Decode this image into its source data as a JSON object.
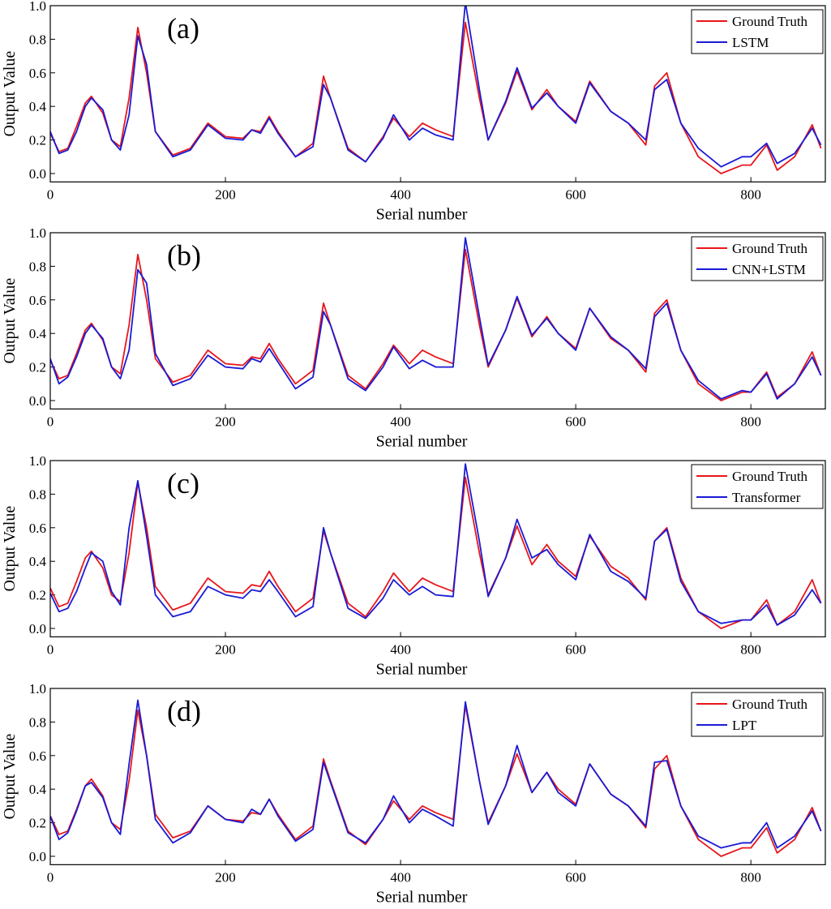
{
  "chart_data": [
    {
      "type": "line",
      "annotation": "(a)",
      "xlabel": "Serial number",
      "ylabel": "Output Value",
      "legend": "upper right",
      "xlim": [
        0,
        885
      ],
      "ylim": [
        -0.05,
        1.0
      ],
      "xticks": [
        0,
        200,
        400,
        600,
        800
      ],
      "yticks": [
        {
          "value": 0,
          "label": "0.0"
        },
        0.2,
        0.4,
        0.6,
        0.8,
        {
          "value": 1,
          "label": "1.0"
        }
      ],
      "x": [
        0,
        10,
        20,
        30,
        40,
        47,
        60,
        70,
        80,
        90,
        100,
        110,
        120,
        140,
        160,
        180,
        200,
        220,
        230,
        240,
        250,
        260,
        280,
        300,
        312,
        320,
        340,
        360,
        380,
        392,
        410,
        425,
        440,
        460,
        474,
        490,
        500,
        520,
        533,
        550,
        567,
        580,
        600,
        616,
        640,
        660,
        680,
        690,
        704,
        720,
        740,
        766,
        790,
        800,
        818,
        830,
        850,
        870,
        880
      ],
      "series": [
        {
          "name": "Ground Truth",
          "color": "#e8161b",
          "values": [
            0.24,
            0.13,
            0.15,
            0.28,
            0.42,
            0.46,
            0.36,
            0.2,
            0.16,
            0.45,
            0.87,
            0.6,
            0.25,
            0.11,
            0.15,
            0.3,
            0.22,
            0.21,
            0.26,
            0.25,
            0.34,
            0.25,
            0.1,
            0.18,
            0.58,
            0.45,
            0.15,
            0.07,
            0.22,
            0.33,
            0.22,
            0.3,
            0.26,
            0.22,
            0.9,
            0.45,
            0.2,
            0.42,
            0.61,
            0.38,
            0.5,
            0.4,
            0.31,
            0.55,
            0.37,
            0.3,
            0.17,
            0.52,
            0.6,
            0.3,
            0.1,
            0.0,
            0.05,
            0.05,
            0.17,
            0.02,
            0.1,
            0.29,
            0.15
          ]
        },
        {
          "name": "LSTM",
          "color": "#1a1ad6",
          "values": [
            0.25,
            0.12,
            0.14,
            0.25,
            0.4,
            0.45,
            0.38,
            0.2,
            0.14,
            0.35,
            0.82,
            0.65,
            0.25,
            0.1,
            0.14,
            0.29,
            0.21,
            0.2,
            0.26,
            0.24,
            0.33,
            0.24,
            0.1,
            0.16,
            0.53,
            0.45,
            0.14,
            0.07,
            0.21,
            0.35,
            0.2,
            0.27,
            0.23,
            0.2,
            1.02,
            0.5,
            0.2,
            0.43,
            0.63,
            0.39,
            0.48,
            0.4,
            0.3,
            0.54,
            0.37,
            0.3,
            0.2,
            0.5,
            0.56,
            0.3,
            0.15,
            0.04,
            0.1,
            0.1,
            0.18,
            0.06,
            0.12,
            0.27,
            0.17
          ]
        }
      ]
    },
    {
      "type": "line",
      "annotation": "(b)",
      "xlabel": "Serial number",
      "ylabel": "Output Value",
      "legend": "upper right",
      "xlim": [
        0,
        885
      ],
      "ylim": [
        -0.05,
        1.0
      ],
      "xticks": [
        0,
        200,
        400,
        600,
        800
      ],
      "yticks": [
        {
          "value": 0,
          "label": "0.0"
        },
        0.2,
        0.4,
        0.6,
        0.8,
        {
          "value": 1,
          "label": "1.0"
        }
      ],
      "x": [
        0,
        10,
        20,
        30,
        40,
        47,
        60,
        70,
        80,
        90,
        100,
        110,
        120,
        140,
        160,
        180,
        200,
        220,
        230,
        240,
        250,
        260,
        280,
        300,
        312,
        320,
        340,
        360,
        380,
        392,
        410,
        425,
        440,
        460,
        474,
        490,
        500,
        520,
        533,
        550,
        567,
        580,
        600,
        616,
        640,
        660,
        680,
        690,
        704,
        720,
        740,
        766,
        790,
        800,
        818,
        830,
        850,
        870,
        880
      ],
      "series": [
        {
          "name": "Ground Truth",
          "color": "#e8161b",
          "values": [
            0.24,
            0.13,
            0.15,
            0.28,
            0.42,
            0.46,
            0.36,
            0.2,
            0.16,
            0.45,
            0.87,
            0.6,
            0.25,
            0.11,
            0.15,
            0.3,
            0.22,
            0.21,
            0.26,
            0.25,
            0.34,
            0.25,
            0.1,
            0.18,
            0.58,
            0.45,
            0.15,
            0.07,
            0.22,
            0.33,
            0.22,
            0.3,
            0.26,
            0.22,
            0.9,
            0.45,
            0.2,
            0.42,
            0.61,
            0.38,
            0.5,
            0.4,
            0.31,
            0.55,
            0.37,
            0.3,
            0.17,
            0.52,
            0.6,
            0.3,
            0.1,
            0.0,
            0.05,
            0.05,
            0.17,
            0.02,
            0.1,
            0.29,
            0.15
          ]
        },
        {
          "name": "CNN+LSTM",
          "color": "#1a1ad6",
          "values": [
            0.25,
            0.1,
            0.14,
            0.26,
            0.4,
            0.45,
            0.37,
            0.2,
            0.13,
            0.3,
            0.78,
            0.7,
            0.28,
            0.09,
            0.13,
            0.27,
            0.2,
            0.19,
            0.25,
            0.23,
            0.31,
            0.23,
            0.07,
            0.14,
            0.53,
            0.45,
            0.13,
            0.06,
            0.2,
            0.32,
            0.19,
            0.24,
            0.2,
            0.2,
            0.97,
            0.5,
            0.21,
            0.42,
            0.62,
            0.39,
            0.49,
            0.4,
            0.3,
            0.55,
            0.38,
            0.3,
            0.19,
            0.5,
            0.58,
            0.3,
            0.12,
            0.01,
            0.06,
            0.05,
            0.16,
            0.01,
            0.1,
            0.26,
            0.15
          ]
        }
      ]
    },
    {
      "type": "line",
      "annotation": "(c)",
      "xlabel": "Serial number",
      "ylabel": "Output Value",
      "legend": "upper right",
      "xlim": [
        0,
        885
      ],
      "ylim": [
        -0.05,
        1.0
      ],
      "xticks": [
        0,
        200,
        400,
        600,
        800
      ],
      "yticks": [
        {
          "value": 0,
          "label": "0.0"
        },
        0.2,
        0.4,
        0.6,
        0.8,
        {
          "value": 1,
          "label": "1.0"
        }
      ],
      "x": [
        0,
        10,
        20,
        30,
        40,
        47,
        60,
        70,
        80,
        90,
        100,
        110,
        120,
        140,
        160,
        180,
        200,
        220,
        230,
        240,
        250,
        260,
        280,
        300,
        312,
        320,
        340,
        360,
        380,
        392,
        410,
        425,
        440,
        460,
        474,
        490,
        500,
        520,
        533,
        550,
        567,
        580,
        600,
        616,
        640,
        660,
        680,
        690,
        704,
        720,
        740,
        766,
        790,
        800,
        818,
        830,
        850,
        870,
        880
      ],
      "series": [
        {
          "name": "Ground Truth",
          "color": "#e8161b",
          "values": [
            0.24,
            0.13,
            0.15,
            0.28,
            0.42,
            0.46,
            0.36,
            0.2,
            0.16,
            0.45,
            0.87,
            0.6,
            0.25,
            0.11,
            0.15,
            0.3,
            0.22,
            0.21,
            0.26,
            0.25,
            0.34,
            0.25,
            0.1,
            0.18,
            0.58,
            0.45,
            0.15,
            0.07,
            0.22,
            0.33,
            0.22,
            0.3,
            0.26,
            0.22,
            0.9,
            0.45,
            0.2,
            0.42,
            0.61,
            0.38,
            0.5,
            0.4,
            0.31,
            0.55,
            0.37,
            0.3,
            0.17,
            0.52,
            0.6,
            0.3,
            0.1,
            0.0,
            0.05,
            0.05,
            0.17,
            0.02,
            0.1,
            0.29,
            0.15
          ]
        },
        {
          "name": "Transformer",
          "color": "#1a1ad6",
          "values": [
            0.21,
            0.1,
            0.12,
            0.22,
            0.36,
            0.45,
            0.4,
            0.22,
            0.14,
            0.6,
            0.88,
            0.55,
            0.2,
            0.07,
            0.1,
            0.25,
            0.2,
            0.18,
            0.23,
            0.22,
            0.29,
            0.22,
            0.07,
            0.13,
            0.6,
            0.45,
            0.12,
            0.06,
            0.18,
            0.29,
            0.2,
            0.25,
            0.2,
            0.19,
            0.98,
            0.52,
            0.19,
            0.42,
            0.65,
            0.42,
            0.47,
            0.38,
            0.29,
            0.56,
            0.34,
            0.28,
            0.18,
            0.52,
            0.59,
            0.28,
            0.1,
            0.03,
            0.05,
            0.05,
            0.14,
            0.02,
            0.08,
            0.23,
            0.15
          ]
        }
      ]
    },
    {
      "type": "line",
      "annotation": "(d)",
      "xlabel": "Serial number",
      "ylabel": "Output Value",
      "legend": "upper right",
      "xlim": [
        0,
        885
      ],
      "ylim": [
        -0.05,
        1.0
      ],
      "xticks": [
        0,
        200,
        400,
        600,
        800
      ],
      "yticks": [
        {
          "value": 0,
          "label": "0.0"
        },
        0.2,
        0.4,
        0.6,
        0.8,
        {
          "value": 1,
          "label": "1.0"
        }
      ],
      "x": [
        0,
        10,
        20,
        30,
        40,
        47,
        60,
        70,
        80,
        90,
        100,
        110,
        120,
        140,
        160,
        180,
        200,
        220,
        230,
        240,
        250,
        260,
        280,
        300,
        312,
        320,
        340,
        360,
        380,
        392,
        410,
        425,
        440,
        460,
        474,
        490,
        500,
        520,
        533,
        550,
        567,
        580,
        600,
        616,
        640,
        660,
        680,
        690,
        704,
        720,
        740,
        766,
        790,
        800,
        818,
        830,
        850,
        870,
        880
      ],
      "series": [
        {
          "name": "Ground Truth",
          "color": "#e8161b",
          "values": [
            0.24,
            0.13,
            0.15,
            0.28,
            0.42,
            0.46,
            0.36,
            0.2,
            0.16,
            0.45,
            0.87,
            0.6,
            0.25,
            0.11,
            0.15,
            0.3,
            0.22,
            0.21,
            0.26,
            0.25,
            0.34,
            0.25,
            0.1,
            0.18,
            0.58,
            0.45,
            0.15,
            0.07,
            0.22,
            0.33,
            0.22,
            0.3,
            0.26,
            0.22,
            0.9,
            0.45,
            0.2,
            0.42,
            0.61,
            0.38,
            0.5,
            0.4,
            0.31,
            0.55,
            0.37,
            0.3,
            0.17,
            0.52,
            0.6,
            0.3,
            0.1,
            0.0,
            0.05,
            0.05,
            0.17,
            0.02,
            0.1,
            0.29,
            0.15
          ]
        },
        {
          "name": "LPT",
          "color": "#1a1ad6",
          "values": [
            0.24,
            0.1,
            0.14,
            0.27,
            0.42,
            0.44,
            0.35,
            0.2,
            0.13,
            0.55,
            0.93,
            0.6,
            0.22,
            0.08,
            0.14,
            0.3,
            0.22,
            0.2,
            0.28,
            0.25,
            0.34,
            0.24,
            0.09,
            0.16,
            0.56,
            0.44,
            0.14,
            0.08,
            0.22,
            0.36,
            0.2,
            0.28,
            0.24,
            0.18,
            0.92,
            0.45,
            0.19,
            0.42,
            0.66,
            0.38,
            0.5,
            0.38,
            0.3,
            0.55,
            0.37,
            0.3,
            0.18,
            0.56,
            0.57,
            0.3,
            0.12,
            0.05,
            0.08,
            0.08,
            0.2,
            0.05,
            0.12,
            0.27,
            0.15
          ]
        }
      ]
    }
  ]
}
